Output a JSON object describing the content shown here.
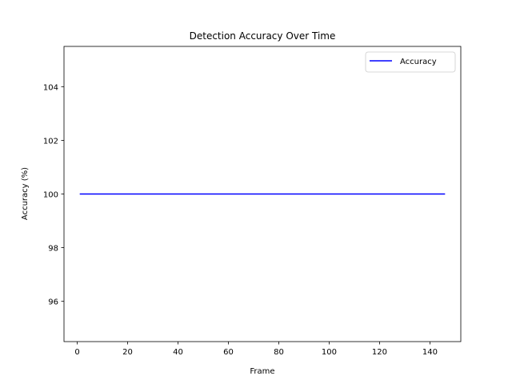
{
  "chart_data": {
    "type": "line",
    "title": "Detection Accuracy Over Time",
    "xlabel": "Frame",
    "ylabel": "Accuracy (%)",
    "xlim": [
      -5.25,
      152.25
    ],
    "ylim": [
      94.5,
      105.5
    ],
    "xticks": [
      0,
      20,
      40,
      60,
      80,
      100,
      120,
      140
    ],
    "yticks": [
      96,
      98,
      100,
      102,
      104
    ],
    "grid": false,
    "legend_position": "top-right",
    "series": [
      {
        "name": "Accuracy",
        "color": "#0000ff",
        "x": [
          1,
          146
        ],
        "y": [
          100,
          100
        ]
      }
    ]
  }
}
